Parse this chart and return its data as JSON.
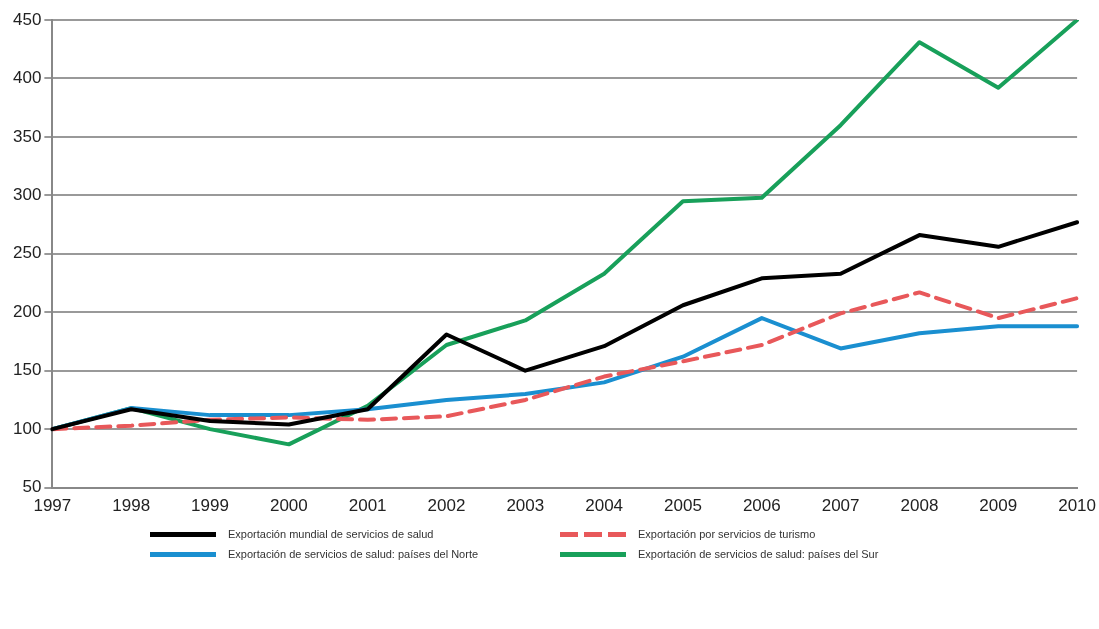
{
  "chart_data": {
    "type": "line",
    "categories": [
      "1997",
      "1998",
      "1999",
      "2000",
      "2001",
      "2002",
      "2003",
      "2004",
      "2005",
      "2006",
      "2007",
      "2008",
      "2009",
      "2010"
    ],
    "series": [
      {
        "name": "Exportación mundial de servicios de salud",
        "color": "#000000",
        "values": [
          100,
          117,
          107,
          104,
          117,
          181,
          150,
          171,
          206,
          229,
          233,
          266,
          256,
          277
        ]
      },
      {
        "name": "Exportación por servicios de turismo",
        "color": "#e8585a",
        "line_style": "dashed",
        "values": [
          100,
          103,
          108,
          110,
          108,
          111,
          125,
          145,
          158,
          172,
          199,
          217,
          195,
          212
        ]
      },
      {
        "name": "Exportación de servicios de salud: países del Norte",
        "color": "#1a8fd0",
        "values": [
          100,
          118,
          112,
          112,
          117,
          125,
          130,
          140,
          162,
          195,
          169,
          182,
          188,
          188
        ]
      },
      {
        "name": "Exportación de servicios de salud: países del Sur",
        "color": "#18a05a",
        "values": [
          100,
          118,
          100,
          87,
          120,
          172,
          193,
          233,
          295,
          298,
          360,
          431,
          392,
          450
        ]
      }
    ],
    "ylim": [
      50,
      450
    ],
    "yticks": [
      50,
      100,
      150,
      200,
      250,
      300,
      350,
      400,
      450
    ],
    "grid": "y",
    "legend": "bottom",
    "marker": "none",
    "line_style": "solid"
  }
}
